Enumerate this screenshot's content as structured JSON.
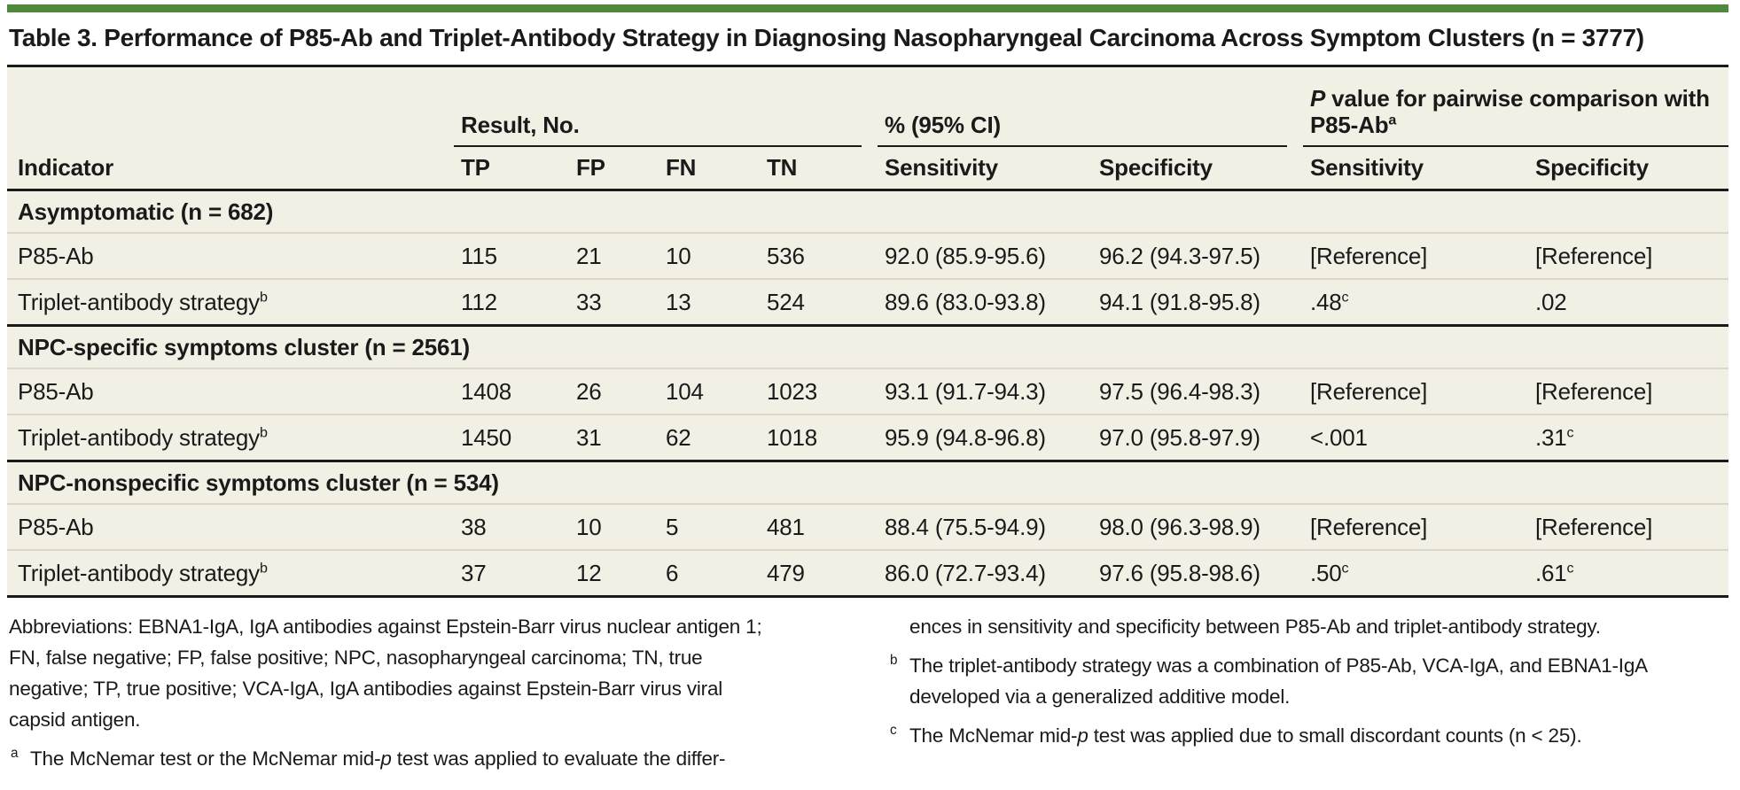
{
  "colors": {
    "accent_green": "#4F8A3C",
    "table_background": "#F2F0E5",
    "rule": "#1A1A1A",
    "row_separator": "#DBD8C9"
  },
  "title": "Table 3. Performance of P85-Ab and Triplet-Antibody Strategy in Diagnosing Nasopharyngeal Carcinoma Across Symptom Clusters (n = 3777)",
  "header": {
    "indicator_label": "Indicator",
    "group_result": "Result, No.",
    "group_ci": "% (95% CI)",
    "group_pvalue": {
      "italic": "P",
      "text": " value for pairwise comparison with P85-Ab",
      "sup": "a"
    },
    "col_tp": "TP",
    "col_fp": "FP",
    "col_fn": "FN",
    "col_tn": "TN",
    "col_sens_ci": "Sensitivity",
    "col_spec_ci": "Specificity",
    "col_sens_p": "Sensitivity",
    "col_spec_p": "Specificity"
  },
  "sections": [
    {
      "label": "Asymptomatic (n = 682)",
      "rows": [
        {
          "indicator": {
            "text": "P85-Ab",
            "sup": ""
          },
          "tp": "115",
          "fp": "21",
          "fn": "10",
          "tn": "536",
          "sens": "92.0 (85.9-95.6)",
          "spec": "96.2 (94.3-97.5)",
          "p_sens": {
            "text": "[Reference]",
            "sup": ""
          },
          "p_spec": {
            "text": "[Reference]",
            "sup": ""
          }
        },
        {
          "indicator": {
            "text": "Triplet-antibody strategy",
            "sup": "b"
          },
          "tp": "112",
          "fp": "33",
          "fn": "13",
          "tn": "524",
          "sens": "89.6 (83.0-93.8)",
          "spec": "94.1 (91.8-95.8)",
          "p_sens": {
            "text": ".48",
            "sup": "c"
          },
          "p_spec": {
            "text": ".02",
            "sup": ""
          }
        }
      ]
    },
    {
      "label": "NPC-specific symptoms cluster (n = 2561)",
      "rows": [
        {
          "indicator": {
            "text": "P85-Ab",
            "sup": ""
          },
          "tp": "1408",
          "fp": "26",
          "fn": "104",
          "tn": "1023",
          "sens": "93.1 (91.7-94.3)",
          "spec": "97.5 (96.4-98.3)",
          "p_sens": {
            "text": "[Reference]",
            "sup": ""
          },
          "p_spec": {
            "text": "[Reference]",
            "sup": ""
          }
        },
        {
          "indicator": {
            "text": "Triplet-antibody strategy",
            "sup": "b"
          },
          "tp": "1450",
          "fp": "31",
          "fn": "62",
          "tn": "1018",
          "sens": "95.9 (94.8-96.8)",
          "spec": "97.0 (95.8-97.9)",
          "p_sens": {
            "text": "<.001",
            "sup": ""
          },
          "p_spec": {
            "text": ".31",
            "sup": "c"
          }
        }
      ]
    },
    {
      "label": "NPC-nonspecific symptoms cluster (n = 534)",
      "rows": [
        {
          "indicator": {
            "text": "P85-Ab",
            "sup": ""
          },
          "tp": "38",
          "fp": "10",
          "fn": "5",
          "tn": "481",
          "sens": "88.4 (75.5-94.9)",
          "spec": "98.0 (96.3-98.9)",
          "p_sens": {
            "text": "[Reference]",
            "sup": ""
          },
          "p_spec": {
            "text": "[Reference]",
            "sup": ""
          }
        },
        {
          "indicator": {
            "text": "Triplet-antibody strategy",
            "sup": "b"
          },
          "tp": "37",
          "fp": "12",
          "fn": "6",
          "tn": "479",
          "sens": "86.0 (72.7-93.4)",
          "spec": "97.6 (95.8-98.6)",
          "p_sens": {
            "text": ".50",
            "sup": "c"
          },
          "p_spec": {
            "text": ".61",
            "sup": "c"
          }
        }
      ]
    }
  ],
  "footnotes": {
    "left": {
      "abbreviations": "Abbreviations: EBNA1-IgA, IgA antibodies against Epstein-Barr virus nuclear antigen 1; FN, false negative; FP, false positive; NPC, nasopharyngeal carcinoma; TN, true negative; TP, true positive; VCA-IgA, IgA antibodies against Epstein-Barr virus viral capsid antigen.",
      "note_a": {
        "marker": "a",
        "pre": "The McNemar test or the McNemar mid-",
        "italic": "p",
        "post": " test was applied to evaluate the differ-"
      }
    },
    "right": {
      "continuation": "ences in sensitivity and specificity between P85-Ab and triplet-antibody strategy.",
      "note_b": {
        "marker": "b",
        "pre": "The triplet-antibody strategy was a combination of P85-Ab, VCA-IgA, and EBNA1-IgA developed via a generalized additive model.",
        "italic": "",
        "post": ""
      },
      "note_c": {
        "marker": "c",
        "pre": "The McNemar mid-",
        "italic": "p",
        "post": " test was applied due to small discordant counts (n < 25)."
      }
    }
  }
}
